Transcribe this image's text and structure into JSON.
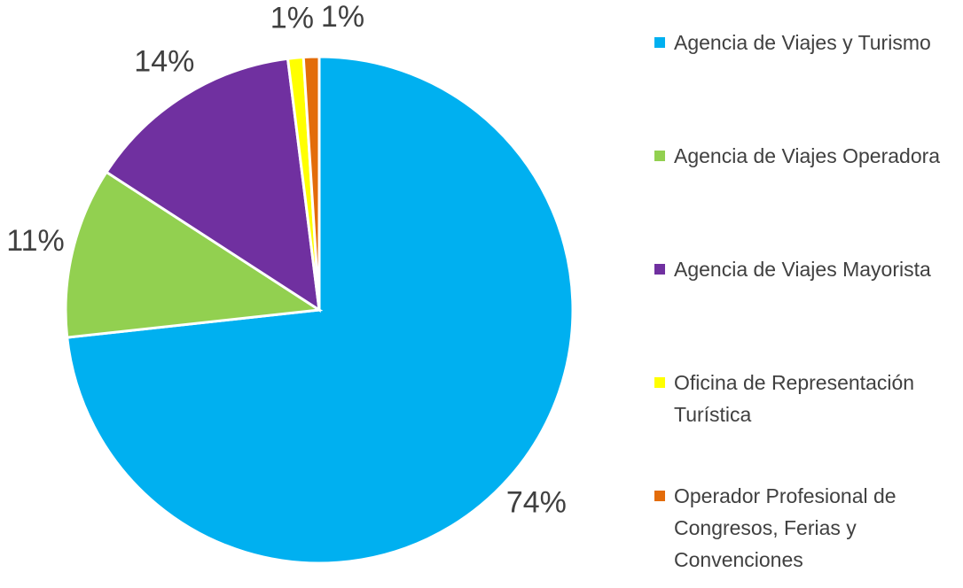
{
  "chart_data": {
    "type": "pie",
    "categories": [
      "Agencia de Viajes y Turismo",
      "Agencia de Viajes Operadora",
      "Agencia de Viajes Mayorista",
      "Oficina de Representación Turística",
      "Operador Profesional de Congresos, Ferias y Convenciones"
    ],
    "values": [
      74,
      11,
      14,
      1,
      1
    ],
    "value_labels": [
      "74%",
      "11%",
      "14%",
      "1%",
      "1%"
    ],
    "colors": [
      "#00b0f0",
      "#92d050",
      "#7030a0",
      "#ffff00",
      "#e36c0a"
    ],
    "legend": "right"
  }
}
